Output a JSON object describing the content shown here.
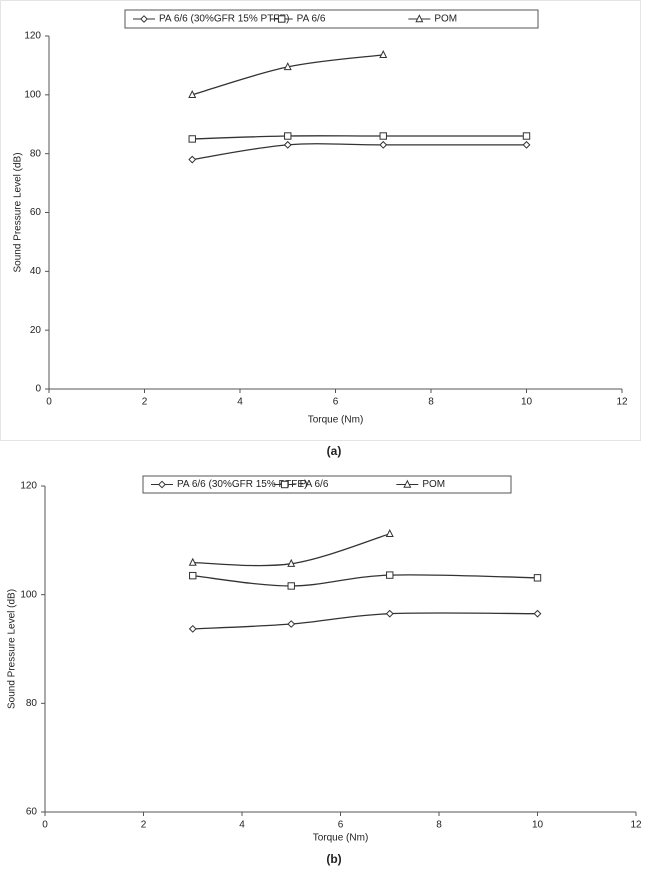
{
  "chart_data": [
    {
      "type": "line",
      "caption": "(a)",
      "x_label": "Torque (Nm)",
      "y_label": "Sound Pressure Level (dB)",
      "xlim": [
        0,
        12
      ],
      "xticks": [
        0,
        2,
        4,
        6,
        8,
        10,
        12
      ],
      "ylim": [
        0,
        120
      ],
      "yticks": [
        0,
        20,
        40,
        60,
        80,
        100,
        120
      ],
      "series": [
        {
          "name": "PA 6/6 (30%GFR 15% PTFE)",
          "color": "#333333",
          "marker": "diamond",
          "x": [
            3,
            5,
            7,
            10
          ],
          "values": [
            78,
            83,
            83,
            83
          ]
        },
        {
          "name": "PA 6/6",
          "color": "#333333",
          "marker": "square",
          "x": [
            3,
            5,
            7,
            10
          ],
          "values": [
            85,
            86,
            86,
            86
          ]
        },
        {
          "name": "POM",
          "color": "#333333",
          "marker": "triangle",
          "x": [
            3,
            5,
            7
          ],
          "values": [
            100,
            109.5,
            113.6
          ]
        }
      ]
    },
    {
      "type": "line",
      "caption": "(b)",
      "x_label": "Torque (Nm)",
      "y_label": "Sound Pressure Level (dB)",
      "xlim": [
        0,
        12
      ],
      "xticks": [
        0,
        2,
        4,
        6,
        8,
        10,
        12
      ],
      "ylim": [
        60,
        120
      ],
      "yticks": [
        60,
        80,
        100,
        120
      ],
      "series": [
        {
          "name": "PA 6/6 (30%GFR 15% PTFE)",
          "color": "#333333",
          "marker": "diamond",
          "x": [
            3,
            5,
            7,
            10
          ],
          "values": [
            93.7,
            94.6,
            96.5,
            96.5
          ]
        },
        {
          "name": "PA 6/6",
          "color": "#333333",
          "marker": "square",
          "x": [
            3,
            5,
            7,
            10
          ],
          "values": [
            103.5,
            101.6,
            103.6,
            103.1
          ]
        },
        {
          "name": "POM",
          "color": "#333333",
          "marker": "triangle",
          "x": [
            3,
            5,
            7
          ],
          "values": [
            105.9,
            105.7,
            111.2
          ]
        }
      ]
    }
  ]
}
